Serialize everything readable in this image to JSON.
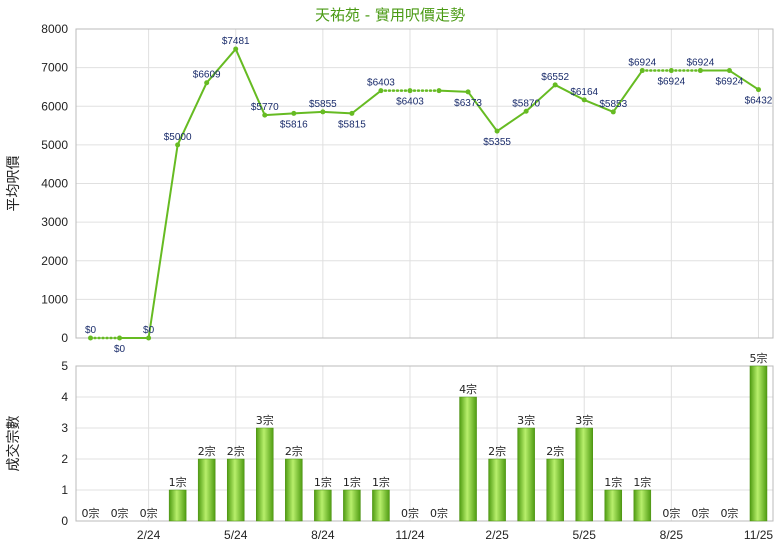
{
  "chart_data": [
    {
      "type": "line",
      "title": "天祐苑 - 實用呎價走勢",
      "ylabel": "平均呎價",
      "ylim": [
        0,
        8000
      ],
      "yticks": [
        0,
        1000,
        2000,
        3000,
        4000,
        5000,
        6000,
        7000,
        8000
      ],
      "x": [
        "12/23",
        "1/24",
        "2/24",
        "3/24",
        "4/24",
        "5/24",
        "6/24",
        "7/24",
        "8/24",
        "9/24",
        "10/24",
        "11/24",
        "12/24",
        "1/25",
        "2/25",
        "3/25",
        "4/25",
        "5/25",
        "6/25",
        "7/25",
        "8/25",
        "9/25",
        "10/25",
        "11/25"
      ],
      "values": [
        0,
        0,
        0,
        5000,
        6609,
        7481,
        5770,
        5816,
        5855,
        5815,
        6403,
        6403,
        6403,
        6373,
        5355,
        5870,
        6552,
        6164,
        5853,
        6924,
        6924,
        6924,
        6924,
        6432
      ],
      "labels": [
        "$0",
        "$0",
        "$0",
        "$5000",
        "$6609",
        "$7481",
        "$5770",
        "$5816",
        "$5855",
        "$5815",
        "$6403",
        "$6403",
        "",
        "$6373",
        "$5355",
        "$5870",
        "$6552",
        "$6164",
        "$5853",
        "$6924",
        "$6924",
        "$6924",
        "$6924",
        "$6432"
      ],
      "label_pos": [
        "above",
        "below",
        "above",
        "above",
        "above",
        "above",
        "above",
        "below",
        "above",
        "below",
        "above",
        "below",
        "above",
        "below",
        "below",
        "above",
        "above",
        "above",
        "above",
        "above",
        "below",
        "above",
        "below",
        "below"
      ],
      "carried": [
        false,
        true,
        false,
        false,
        false,
        false,
        false,
        false,
        false,
        false,
        false,
        true,
        true,
        false,
        false,
        false,
        false,
        false,
        false,
        false,
        true,
        true,
        false,
        false
      ],
      "color": "#66bb22"
    },
    {
      "type": "bar",
      "ylabel": "成交宗數",
      "ylim": [
        0,
        5
      ],
      "yticks": [
        0,
        1,
        2,
        3,
        4,
        5
      ],
      "x": [
        "12/23",
        "1/24",
        "2/24",
        "3/24",
        "4/24",
        "5/24",
        "6/24",
        "7/24",
        "8/24",
        "9/24",
        "10/24",
        "11/24",
        "12/24",
        "1/25",
        "2/25",
        "3/25",
        "4/25",
        "5/25",
        "6/25",
        "7/25",
        "8/25",
        "9/25",
        "10/25",
        "11/25"
      ],
      "values": [
        0,
        0,
        0,
        1,
        2,
        2,
        3,
        2,
        1,
        1,
        1,
        0,
        0,
        4,
        2,
        3,
        2,
        3,
        1,
        1,
        0,
        0,
        0,
        5
      ],
      "labels": [
        "0宗",
        "0宗",
        "0宗",
        "1宗",
        "2宗",
        "2宗",
        "3宗",
        "2宗",
        "1宗",
        "1宗",
        "1宗",
        "0宗",
        "0宗",
        "4宗",
        "2宗",
        "3宗",
        "2宗",
        "3宗",
        "1宗",
        "1宗",
        "0宗",
        "0宗",
        "0宗",
        "5宗"
      ],
      "xtick_labels": [
        "2/24",
        "5/24",
        "8/24",
        "11/24",
        "2/25",
        "5/25",
        "8/25",
        "11/25"
      ],
      "xtick_index": [
        2,
        5,
        8,
        11,
        14,
        17,
        20,
        23
      ],
      "color": "#66bb22"
    }
  ]
}
